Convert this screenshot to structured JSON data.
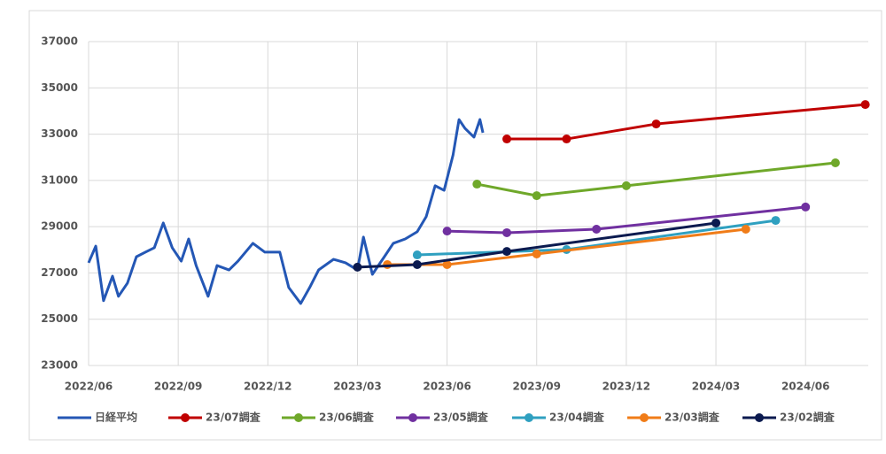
{
  "chart_data": {
    "type": "line",
    "xlim": [
      0,
      26.1
    ],
    "ylim": [
      23000,
      37000
    ],
    "yticks": [
      23000,
      25000,
      27000,
      29000,
      31000,
      33000,
      35000,
      37000
    ],
    "xticks": [
      {
        "value": 0,
        "label": "2022/06"
      },
      {
        "value": 3,
        "label": "2022/09"
      },
      {
        "value": 6,
        "label": "2022/12"
      },
      {
        "value": 9,
        "label": "2023/03"
      },
      {
        "value": 12,
        "label": "2023/06"
      },
      {
        "value": 15,
        "label": "2023/09"
      },
      {
        "value": 18,
        "label": "2023/12"
      },
      {
        "value": 21,
        "label": "2024/03"
      },
      {
        "value": 24,
        "label": "2024/06"
      }
    ],
    "grid": true,
    "legend": "bottom",
    "series": [
      {
        "name": "日経平均",
        "color": "#2457b5",
        "markers": false,
        "x": [
          0,
          0.24,
          0.5,
          0.8,
          1.0,
          1.3,
          1.6,
          1.9,
          2.2,
          2.5,
          2.8,
          3.1,
          3.35,
          3.6,
          4.0,
          4.3,
          4.7,
          5.0,
          5.5,
          5.9,
          6.4,
          6.7,
          7.1,
          7.4,
          7.7,
          8.2,
          8.6,
          9.0,
          9.2,
          9.5,
          9.9,
          10.2,
          10.6,
          11.0,
          11.3,
          11.6,
          11.9,
          12.2,
          12.4,
          12.6,
          12.9,
          13.1,
          13.2
        ],
        "values": [
          27440,
          28160,
          25800,
          26860,
          25990,
          26560,
          27700,
          27900,
          28090,
          29160,
          28090,
          27510,
          28470,
          27320,
          25990,
          27320,
          27130,
          27510,
          28280,
          27900,
          27900,
          26370,
          25680,
          26370,
          27130,
          27590,
          27440,
          27130,
          28550,
          26940,
          27700,
          28280,
          28470,
          28780,
          29430,
          30770,
          30570,
          32100,
          33630,
          33250,
          32870,
          33630,
          33060
        ]
      },
      {
        "name": "23/07調査",
        "color": "#c00000",
        "markers": true,
        "x": [
          14,
          16,
          19,
          26
        ],
        "values": [
          32790,
          32790,
          33440,
          34280
        ]
      },
      {
        "name": "23/06調査",
        "color": "#6fa82a",
        "markers": true,
        "x": [
          13,
          15,
          18,
          25
        ],
        "values": [
          30840,
          30340,
          30770,
          31760
        ]
      },
      {
        "name": "23/05調査",
        "color": "#7030a0",
        "markers": true,
        "x": [
          12,
          14,
          17,
          24
        ],
        "values": [
          28810,
          28740,
          28890,
          29850
        ]
      },
      {
        "name": "23/04調査",
        "color": "#2fa0c0",
        "markers": true,
        "x": [
          11,
          16,
          23
        ],
        "values": [
          27780,
          28010,
          29270
        ]
      },
      {
        "name": "23/03調査",
        "color": "#f07c18",
        "markers": true,
        "x": [
          10,
          12,
          15,
          22
        ],
        "values": [
          27360,
          27360,
          27820,
          28890
        ]
      },
      {
        "name": "23/02調査",
        "color": "#0b1a4f",
        "markers": true,
        "x": [
          9,
          11,
          14,
          21
        ],
        "values": [
          27250,
          27360,
          27930,
          29160
        ]
      }
    ]
  }
}
